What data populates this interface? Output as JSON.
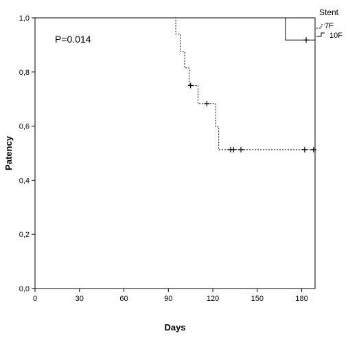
{
  "chart_data": {
    "type": "line",
    "subtype": "kaplan-meier",
    "xlabel": "Days",
    "ylabel": "Patency",
    "xlim": [
      0,
      189
    ],
    "ylim": [
      0,
      1.0
    ],
    "xticks": [
      0,
      30,
      60,
      90,
      120,
      150,
      180
    ],
    "xtick_labels": [
      "0",
      "30",
      "60",
      "90",
      "120",
      "150",
      "180"
    ],
    "yticks": [
      0,
      0.2,
      0.4,
      0.6,
      0.8,
      1.0
    ],
    "ytick_labels": [
      "0,0",
      "0,2",
      "0,4",
      "0,6",
      "0,8",
      "1,0"
    ],
    "annotation": "P=0.014",
    "legend": {
      "title": "Stent",
      "placement": "top-right"
    },
    "series": [
      {
        "name": "7F",
        "style": "dashed",
        "color": "#000000",
        "steps": [
          [
            0,
            1.0
          ],
          [
            95,
            0.94
          ],
          [
            98,
            0.875
          ],
          [
            101,
            0.815
          ],
          [
            104,
            0.75
          ],
          [
            110,
            0.683
          ],
          [
            122,
            0.597
          ],
          [
            124,
            0.513
          ],
          [
            189,
            0.513
          ]
        ],
        "censored": [
          [
            105,
            0.75
          ],
          [
            116,
            0.683
          ],
          [
            132,
            0.513
          ],
          [
            134,
            0.513
          ],
          [
            139,
            0.513
          ],
          [
            182,
            0.513
          ],
          [
            188,
            0.513
          ]
        ]
      },
      {
        "name": "10F",
        "style": "solid",
        "color": "#000000",
        "steps": [
          [
            0,
            1.0
          ],
          [
            169,
            0.918
          ],
          [
            189,
            0.918
          ]
        ],
        "censored": [
          [
            183,
            0.918
          ]
        ]
      }
    ]
  }
}
